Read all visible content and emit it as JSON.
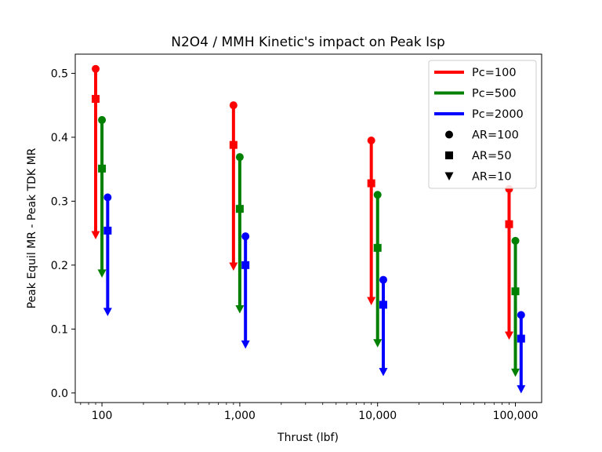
{
  "chart_data": {
    "type": "scatter",
    "title": "N2O4 / MMH Kinetic's impact on Peak Isp",
    "xlabel": "Thrust (lbf)",
    "ylabel": "Peak Equil MR - Peak TDK MR",
    "xscale": "log",
    "xlim": [
      64,
      155000
    ],
    "ylim": [
      -0.015,
      0.53
    ],
    "x_ticks": [
      100,
      1000,
      10000,
      100000
    ],
    "x_tick_labels": [
      "100",
      "1,000",
      "10,000",
      "100,000"
    ],
    "y_ticks": [
      0.0,
      0.1,
      0.2,
      0.3,
      0.4,
      0.5
    ],
    "y_tick_labels": [
      "0.0",
      "0.1",
      "0.2",
      "0.3",
      "0.4",
      "0.5"
    ],
    "legend_position": "upper-right",
    "legend": [
      {
        "label": "Pc=100",
        "kind": "line",
        "color": "#ff0000"
      },
      {
        "label": "Pc=500",
        "kind": "line",
        "color": "#008000"
      },
      {
        "label": "Pc=2000",
        "kind": "line",
        "color": "#0000ff"
      },
      {
        "label": "AR=100",
        "kind": "marker",
        "marker": "circle"
      },
      {
        "label": "AR=50",
        "kind": "marker",
        "marker": "square"
      },
      {
        "label": "AR=10",
        "kind": "marker",
        "marker": "triangle-down"
      }
    ],
    "series": [
      {
        "pc": "Pc=100",
        "color": "#ff0000",
        "points": [
          {
            "x": 90,
            "ar100": 0.507,
            "ar50": 0.46,
            "ar10": 0.247
          },
          {
            "x": 900,
            "ar100": 0.45,
            "ar50": 0.388,
            "ar10": 0.198
          },
          {
            "x": 9000,
            "ar100": 0.395,
            "ar50": 0.328,
            "ar10": 0.144
          },
          {
            "x": 90000,
            "ar100": 0.319,
            "ar50": 0.264,
            "ar10": 0.09
          }
        ]
      },
      {
        "pc": "Pc=500",
        "color": "#008000",
        "points": [
          {
            "x": 100,
            "ar100": 0.427,
            "ar50": 0.351,
            "ar10": 0.187
          },
          {
            "x": 1000,
            "ar100": 0.369,
            "ar50": 0.288,
            "ar10": 0.131
          },
          {
            "x": 10000,
            "ar100": 0.31,
            "ar50": 0.227,
            "ar10": 0.078
          },
          {
            "x": 100000,
            "ar100": 0.238,
            "ar50": 0.159,
            "ar10": 0.032
          }
        ]
      },
      {
        "pc": "Pc=2000",
        "color": "#0000ff",
        "points": [
          {
            "x": 110,
            "ar100": 0.306,
            "ar50": 0.254,
            "ar10": 0.127
          },
          {
            "x": 1100,
            "ar100": 0.245,
            "ar50": 0.2,
            "ar10": 0.076
          },
          {
            "x": 11000,
            "ar100": 0.177,
            "ar50": 0.138,
            "ar10": 0.033
          },
          {
            "x": 110000,
            "ar100": 0.122,
            "ar50": 0.085,
            "ar10": 0.006
          }
        ]
      }
    ]
  }
}
